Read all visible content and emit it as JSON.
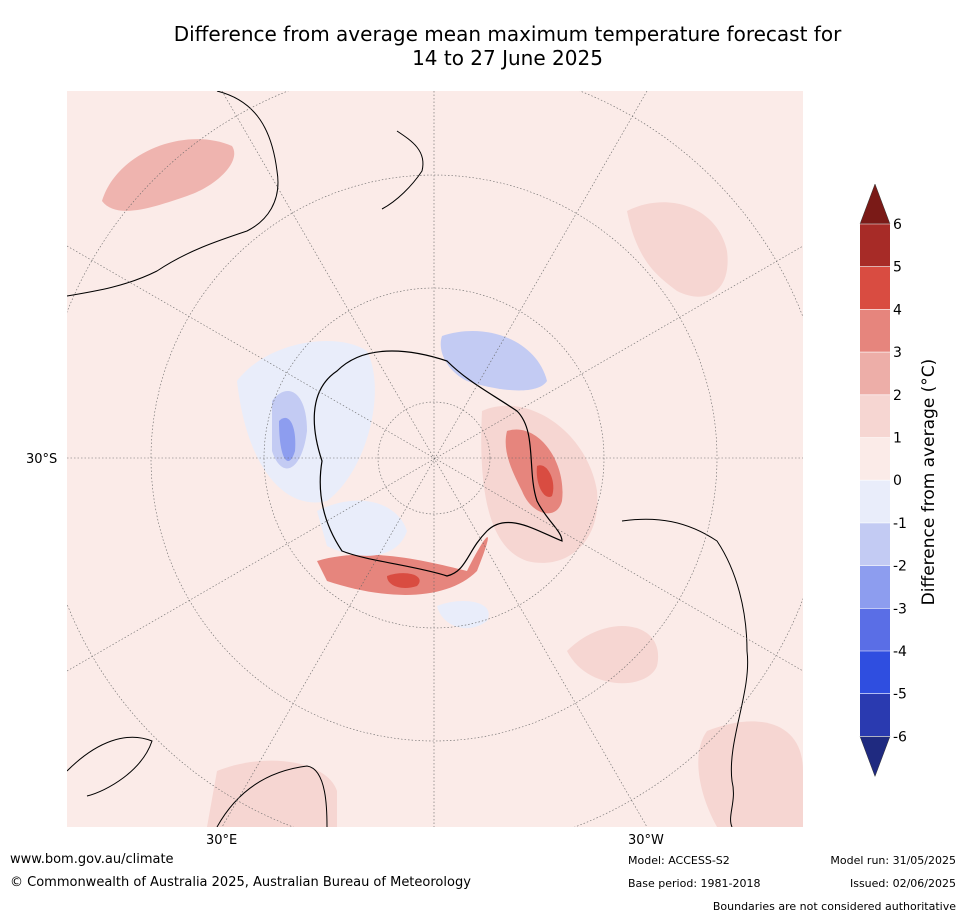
{
  "title": {
    "line1": "Difference from average mean maximum temperature forecast for",
    "line2": "14 to 27 June 2025"
  },
  "axis_labels": {
    "lat": "30°S",
    "lon_east": "30°E",
    "lon_west": "30°W"
  },
  "colorbar": {
    "label": "Difference from average (°C)",
    "ticks": [
      "6",
      "5",
      "4",
      "3",
      "2",
      "1",
      "0",
      "-1",
      "-2",
      "-3",
      "-4",
      "-5",
      "-6"
    ],
    "colors": [
      "#7a1a17",
      "#a72b27",
      "#d94c41",
      "#e6857d",
      "#edaea8",
      "#f6d6d2",
      "#fbebe8",
      "#e9edfa",
      "#c3cbf3",
      "#8d9def",
      "#5a6ee6",
      "#2f4ee0",
      "#2a3ab0",
      "#1f2a80"
    ]
  },
  "footer": {
    "website": "www.bom.gov.au/climate",
    "copyright": "© Commonwealth of Australia 2025, Australian Bureau of Meteorology",
    "model": "Model: ACCESS-S2",
    "base_period": "Base period: 1981-2018",
    "model_run": "Model run: 31/05/2025",
    "issued": "Issued: 02/06/2025",
    "disclaimer": "Boundaries are not considered authoritative"
  }
}
